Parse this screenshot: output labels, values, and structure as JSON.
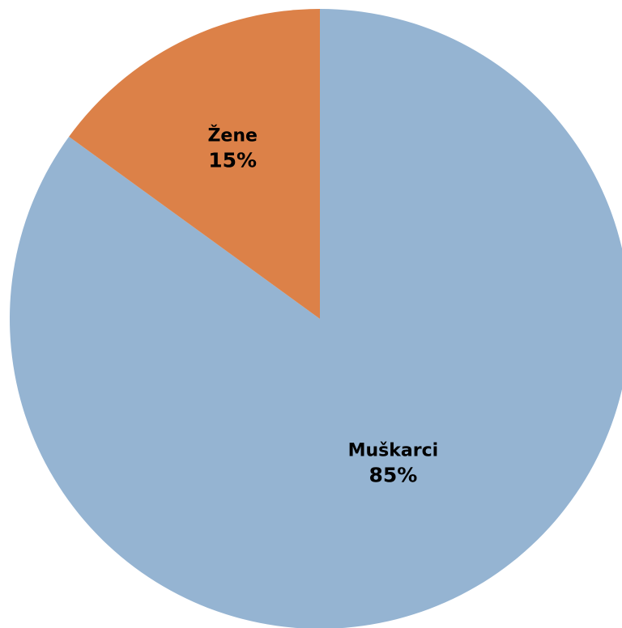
{
  "chart_data": {
    "type": "pie",
    "categories": [
      "Muškarci",
      "Žene"
    ],
    "values": [
      85,
      15
    ],
    "value_labels": [
      "85%",
      "15%"
    ],
    "colors": [
      "#95b4d2",
      "#dc8148"
    ],
    "start": "12 o'clock, clockwise",
    "legend": "none"
  }
}
